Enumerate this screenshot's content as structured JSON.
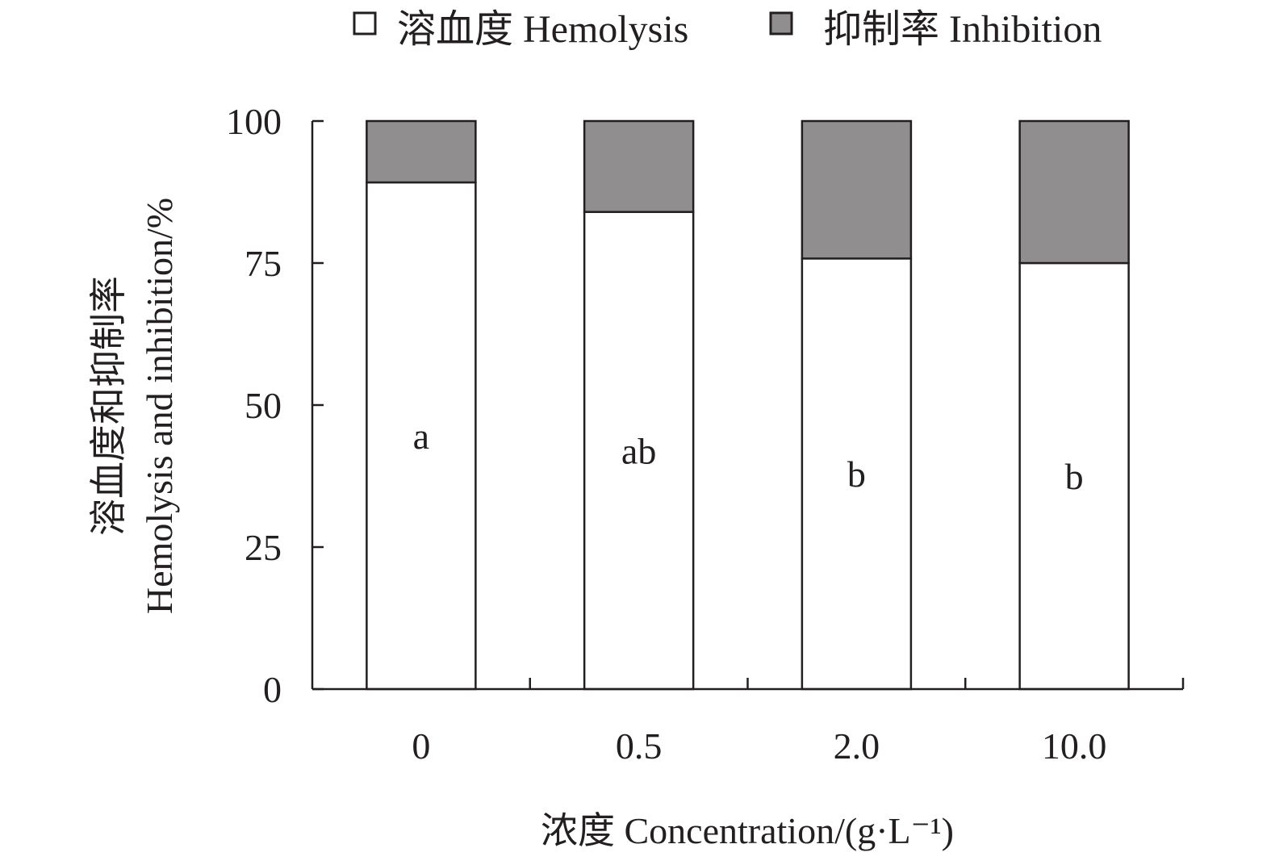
{
  "chart_data": {
    "type": "bar",
    "stacked": true,
    "categories": [
      "0",
      "0.5",
      "2.0",
      "10.0"
    ],
    "series": [
      {
        "name": "溶血度 Hemolysis",
        "values": [
          89.2,
          84.0,
          75.8,
          75.0
        ],
        "color": "#ffffff"
      },
      {
        "name": "抑制率 Inhibition",
        "values": [
          10.8,
          16.0,
          24.2,
          25.0
        ],
        "color": "#908e8f"
      }
    ],
    "significance_labels": [
      "a",
      "ab",
      "b",
      "b"
    ],
    "ylim": [
      0,
      100
    ],
    "yticks": [
      0,
      25,
      50,
      75,
      100
    ],
    "xlabel": "浓度 Concentration/(g·L⁻¹)",
    "ylabel_line1": "溶血度和抑制率",
    "ylabel_line2": "Hemolysis and inhibition/%",
    "legend_position": "top",
    "grid": false
  }
}
